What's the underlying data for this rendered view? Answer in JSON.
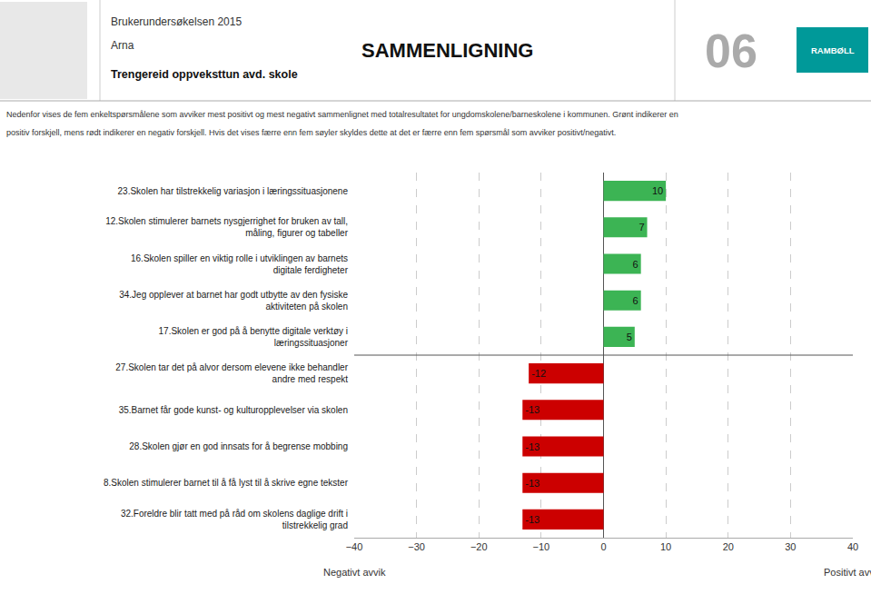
{
  "chart_data": {
    "type": "bar",
    "orientation": "horizontal",
    "title": "SAMMENLIGNING",
    "subtitle": [
      "Brukerundersøkelsen 2015",
      "Arna",
      "Trengereid oppveksttun avd. skole"
    ],
    "annotations": [
      "06",
      "RAMBØLL",
      "Nedenfor vises de fem enkeltspørsmålene som avviker mest positivt og mest negativt sammenlignet med totalresultatet for ungdomskolene/barneskolene i kommunen. Grønt indikerer en",
      "positiv forskjell, mens rødt indikerer en negativ forskjell. Hvis det vises færre enn fem søyler skyldes dette at det er færre enn fem spørsmål som avviker positivt/negativt.",
      "Negativt avvik",
      "Positivt avvik"
    ],
    "categories": [
      "23.Skolen har tilstrekkelig variasjon i læringssituasjonene",
      "12.Skolen stimulerer barnets nysgjerrighet for bruken av tall,\nmåling, figurer og tabeller",
      "16.Skolen spiller en viktig rolle i utviklingen av barnets\ndigitale ferdigheter",
      "34.Jeg opplever at barnet har godt utbytte av den fysiske\naktiviteten på skolen",
      "17.Skolen er god på å benytte digitale verktøy i\nlæringssituasjoner",
      "27.Skolen tar det på alvor dersom elevene ikke behandler\nandre med respekt",
      "35.Barnet får gode kunst- og kulturopplevelser via skolen",
      "28.Skolen gjør en god innsats for å begrense mobbing",
      "8.Skolen stimulerer barnet til å få lyst til å skrive egne tekster",
      "32.Foreldre blir tatt med på råd om skolens daglige drift i\ntilstrekkelig grad"
    ],
    "values": [
      10,
      7,
      6,
      6,
      5,
      -12,
      -13,
      -13,
      -13,
      -13
    ],
    "colors": [
      "#3cb454",
      "#3cb454",
      "#3cb454",
      "#3cb454",
      "#3cb454",
      "#cc0000",
      "#cc0000",
      "#cc0000",
      "#cc0000",
      "#cc0000"
    ],
    "data_labels": true,
    "xlim": [
      -40,
      40
    ],
    "xticks": [
      -40,
      -30,
      -20,
      -10,
      0,
      10,
      20,
      30,
      40
    ],
    "grid": true
  }
}
